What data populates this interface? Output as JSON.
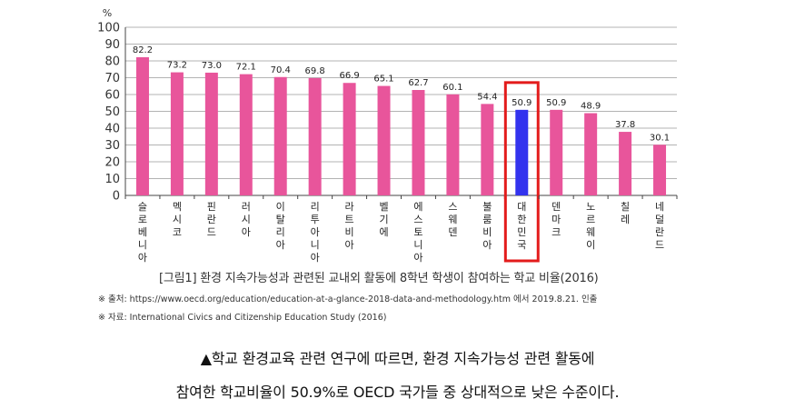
{
  "chart_data": {
    "type": "bar",
    "unit_label": "%",
    "ylim": [
      0,
      100
    ],
    "yticks": [
      0,
      10,
      20,
      30,
      40,
      50,
      60,
      70,
      80,
      90,
      100
    ],
    "grid": true,
    "categories": [
      "슬로베니아",
      "멕시코",
      "핀란드",
      "러시아",
      "이탈리아",
      "리투아니아",
      "라트비아",
      "벨기에",
      "에스토니아",
      "스웨덴",
      "불룸비아",
      "대한민국",
      "덴마크",
      "노르웨이",
      "칠레",
      "네덜란드"
    ],
    "values": [
      82.2,
      73.2,
      73.0,
      72.1,
      70.4,
      69.8,
      66.9,
      65.1,
      62.7,
      60.1,
      54.4,
      50.9,
      50.9,
      48.9,
      37.8,
      30.1
    ],
    "value_labels": [
      "82.2",
      "73.2",
      "73.0",
      "72.1",
      "70.4",
      "69.8",
      "66.9",
      "65.1",
      "62.7",
      "60.1",
      "54.4",
      "50.9",
      "50.9",
      "48.9",
      "37.8",
      "30.1"
    ],
    "highlight_category": "대한민국",
    "colors": {
      "bar": "#e8559b",
      "highlight": "#3333ee",
      "highlight_box": "#e31b1b",
      "grid": "#9a9a9a",
      "axis": "#444444"
    }
  },
  "figure": {
    "caption": "[그림1] 환경 지속가능성과 관련된 교내외 활동에 8학년 학생이 참여하는 학교 비율(2016)",
    "source_note": "※ 출처: https://www.oecd.org/education/education-at-a-glance-2018-data-and-methodology.htm 에서 2019.8.21. 인출",
    "data_note": "※ 자료: International Civics and Citizenship Education Study (2016)"
  },
  "article": {
    "line1": "▲학교 환경교육 관련 연구에 따르면, 환경 지속가능성 관련 활동에",
    "line2": "참여한 학교비율이 50.9%로 OECD 국가들 중 상대적으로 낮은 수준이다."
  }
}
